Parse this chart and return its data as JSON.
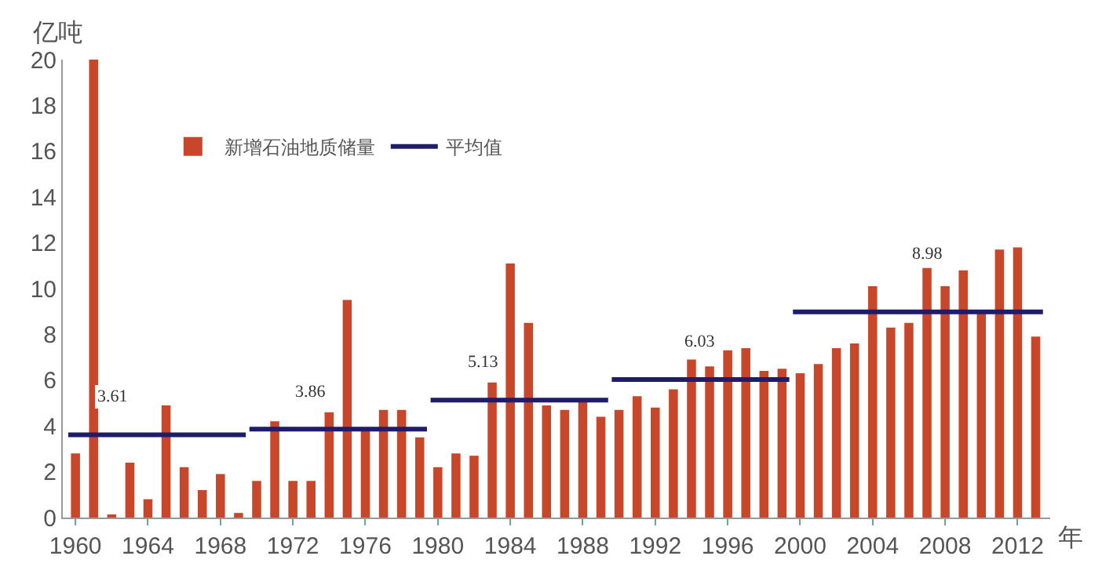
{
  "chart_data": {
    "type": "bar",
    "ylabel": "亿吨",
    "xlabel": "年",
    "x": [
      1960,
      1961,
      1962,
      1963,
      1964,
      1965,
      1966,
      1967,
      1968,
      1969,
      1970,
      1971,
      1972,
      1973,
      1974,
      1975,
      1976,
      1977,
      1978,
      1979,
      1980,
      1981,
      1982,
      1983,
      1984,
      1985,
      1986,
      1987,
      1988,
      1989,
      1990,
      1991,
      1992,
      1993,
      1994,
      1995,
      1996,
      1997,
      1998,
      1999,
      2000,
      2001,
      2002,
      2003,
      2004,
      2005,
      2006,
      2007,
      2008,
      2009,
      2010,
      2011,
      2012,
      2013
    ],
    "series": [
      {
        "name": "新增石油地质储量",
        "color": "#c8472a",
        "values": [
          2.8,
          20,
          0.1,
          2.4,
          0.8,
          4.9,
          2.2,
          1.2,
          1.9,
          0.2,
          1.6,
          4.2,
          1.6,
          1.6,
          4.6,
          9.5,
          3.8,
          4.7,
          4.7,
          3.5,
          2.2,
          2.8,
          2.7,
          5.9,
          11.1,
          8.5,
          4.9,
          4.7,
          5.1,
          4.4,
          4.7,
          5.3,
          4.8,
          5.6,
          6.9,
          6.6,
          7.3,
          7.4,
          6.4,
          6.5,
          6.3,
          6.7,
          7.4,
          7.6,
          10.1,
          8.3,
          8.5,
          10.9,
          10.1,
          10.8,
          9.0,
          11.7,
          11.8,
          7.9
        ]
      },
      {
        "name": "平均值",
        "type": "line",
        "color": "#1f1d6b",
        "x": [
          1959.6,
          1969.4,
          1969.5,
          1969.6,
          1979.4,
          1979.5,
          1979.6,
          1989.4,
          1989.5,
          1989.6,
          1999.4,
          1999.5,
          1999.6,
          2013.4
        ],
        "values": [
          3.61,
          3.61,
          null,
          3.86,
          3.86,
          null,
          5.13,
          5.13,
          null,
          6.03,
          6.03,
          null,
          8.98,
          8.98
        ]
      }
    ],
    "annotations": [
      {
        "text": "3.61",
        "x": 1962,
        "y": 3.61
      },
      {
        "text": "3.86",
        "x": 1973,
        "y": 3.86
      },
      {
        "text": "5.13",
        "x": 1982.5,
        "y": 5.13
      },
      {
        "text": "6.03",
        "x": 1994.5,
        "y": 6.03
      },
      {
        "text": "8.98",
        "x": 2007,
        "y": 8.98
      }
    ],
    "xlim": [
      1959.3,
      2013.8
    ],
    "xticks": [
      1960,
      1964,
      1968,
      1972,
      1976,
      1980,
      1984,
      1988,
      1992,
      1996,
      2000,
      2004,
      2008,
      2012
    ],
    "ylim": [
      0,
      20
    ],
    "yticks": [
      0,
      2,
      4,
      6,
      8,
      10,
      12,
      14,
      16,
      18,
      20
    ],
    "grid": false,
    "legend": "top left",
    "marker": "none",
    "line_style": "solid"
  }
}
